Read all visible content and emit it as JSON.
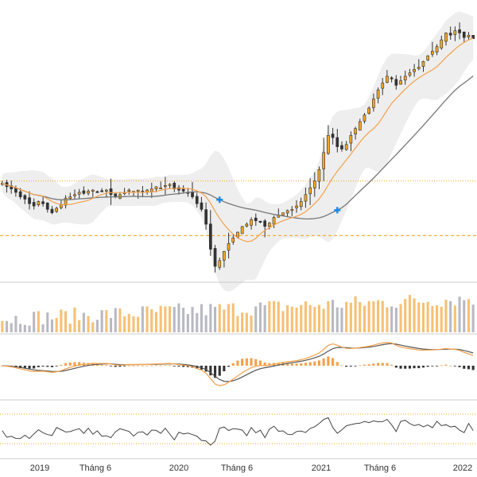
{
  "chart_data": {
    "type": "candlestick-with-indicators",
    "x_axis": {
      "ticks": [
        "2019",
        "Tháng 6",
        "2020",
        "Tháng 6",
        "2021",
        "Tháng 6",
        "2022"
      ],
      "range": [
        "2018-10",
        "2022-03"
      ]
    },
    "price_panel": {
      "reference_lines": [
        {
          "name": "resistance",
          "value": 1.0,
          "color": "#f5a623",
          "style": "dotted"
        },
        {
          "name": "support",
          "value": 0.52,
          "color": "#f5a623",
          "style": "dashed"
        }
      ],
      "weekly_close": [
        0.98,
        0.95,
        0.93,
        0.9,
        0.86,
        0.84,
        0.8,
        0.78,
        0.82,
        0.8,
        0.75,
        0.72,
        0.76,
        0.79,
        0.85,
        0.86,
        0.88,
        0.9,
        0.89,
        0.91,
        0.92,
        0.9,
        0.91,
        0.92,
        0.88,
        0.86,
        0.88,
        0.9,
        0.92,
        0.91,
        0.92,
        0.91,
        0.92,
        0.93,
        0.95,
        0.94,
        0.96,
        0.97,
        0.93,
        0.92,
        0.91,
        0.9,
        0.86,
        0.8,
        0.75,
        0.62,
        0.4,
        0.25,
        0.3,
        0.38,
        0.45,
        0.5,
        0.55,
        0.6,
        0.62,
        0.66,
        0.65,
        0.64,
        0.6,
        0.63,
        0.68,
        0.7,
        0.72,
        0.74,
        0.75,
        0.78,
        0.82,
        0.88,
        0.94,
        1.0,
        1.1,
        1.25,
        1.4,
        1.38,
        1.3,
        1.28,
        1.32,
        1.4,
        1.46,
        1.52,
        1.58,
        1.64,
        1.72,
        1.8,
        1.86,
        1.92,
        1.9,
        1.84,
        1.88,
        1.92,
        1.95,
        1.98,
        2.0,
        2.05,
        2.1,
        2.14,
        2.18,
        2.24,
        2.3,
        2.28,
        2.32,
        2.3,
        2.26,
        2.28,
        2.25
      ],
      "sma_fast_color": "#f5a04a",
      "sma_slow_color": "#777777",
      "band_color": "#eeeeee",
      "up_candle_color": "#f5a623",
      "down_candle_color": "#333333",
      "cross_markers_color": "#1e88e5"
    },
    "volume_panel": {
      "up_color": "#f7c074",
      "down_color": "#b9b9c3"
    },
    "macd_panel": {
      "macd_color": "#f5a04a",
      "signal_color": "#555555",
      "hist_up_color": "#f5a04a",
      "hist_down_color": "#333333"
    },
    "oscillator_panel": {
      "line_color": "#444444",
      "guide_color": "#f5a623"
    }
  }
}
